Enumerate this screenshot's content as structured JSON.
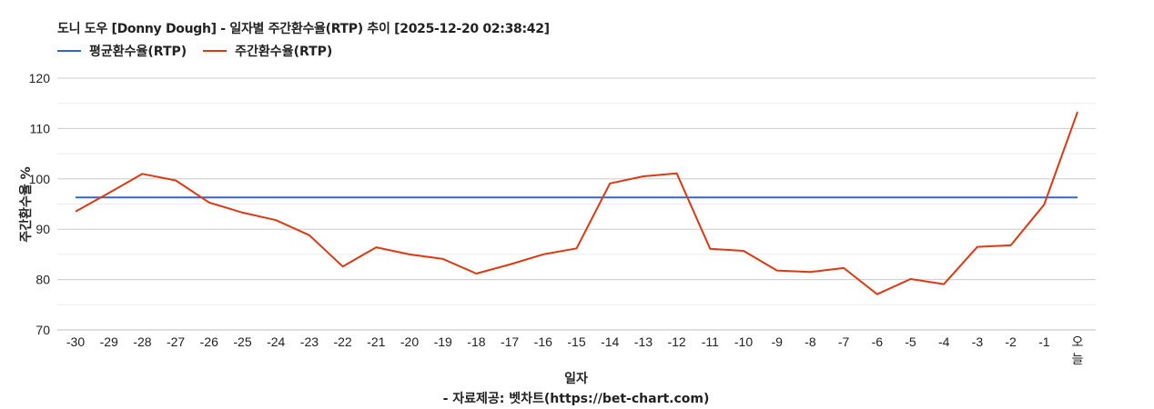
{
  "title": "도니 도우 [Donny Dough] - 일자별 주간환수율(RTP) 추이 [2025-12-20 02:38:42]",
  "legend": [
    {
      "label": "평균환수율(RTP)",
      "color": "#3366cc"
    },
    {
      "label": "주간환수율(RTP)",
      "color": "#dc3912"
    }
  ],
  "xlabel": "일자",
  "source": "- 자료제공: 벳차트(https://bet-chart.com)",
  "chart_data": {
    "type": "line",
    "title": "도니 도우 [Donny Dough] - 일자별 주간환수율(RTP) 추이 [2025-12-20 02:38:42]",
    "xlabel": "일자",
    "ylabel": "주간환수율 %",
    "ylim": [
      70,
      120
    ],
    "yticks": [
      70,
      80,
      90,
      100,
      110,
      120
    ],
    "grid": true,
    "legend_position": "top-left",
    "categories": [
      "-30",
      "-29",
      "-28",
      "-27",
      "-26",
      "-25",
      "-24",
      "-23",
      "-22",
      "-21",
      "-20",
      "-19",
      "-18",
      "-17",
      "-16",
      "-15",
      "-14",
      "-13",
      "-12",
      "-11",
      "-10",
      "-9",
      "-8",
      "-7",
      "-6",
      "-5",
      "-4",
      "-3",
      "-2",
      "-1",
      "오늘"
    ],
    "series": [
      {
        "name": "평균환수율(RTP)",
        "color": "#3366cc",
        "values": [
          96.3,
          96.3,
          96.3,
          96.3,
          96.3,
          96.3,
          96.3,
          96.3,
          96.3,
          96.3,
          96.3,
          96.3,
          96.3,
          96.3,
          96.3,
          96.3,
          96.3,
          96.3,
          96.3,
          96.3,
          96.3,
          96.3,
          96.3,
          96.3,
          96.3,
          96.3,
          96.3,
          96.3,
          96.3,
          96.3,
          96.3
        ]
      },
      {
        "name": "주간환수율(RTP)",
        "color": "#dc3912",
        "values": [
          93.5,
          97.2,
          101.0,
          99.7,
          95.3,
          93.3,
          91.8,
          88.8,
          82.6,
          86.4,
          85.0,
          84.1,
          81.2,
          83.0,
          85.0,
          86.2,
          99.1,
          100.5,
          101.1,
          86.1,
          85.7,
          81.8,
          81.5,
          82.3,
          77.1,
          80.1,
          79.1,
          86.5,
          86.8,
          94.9,
          113.3
        ]
      }
    ]
  }
}
